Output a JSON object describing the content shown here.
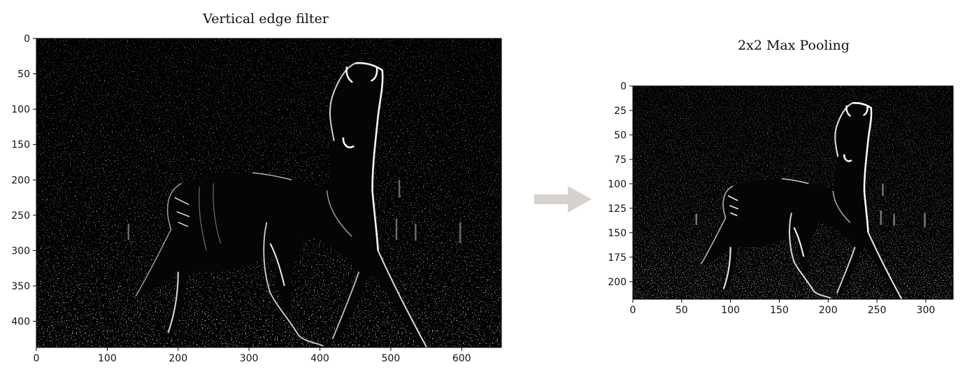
{
  "charts": {
    "left": {
      "title": "Vertical edge filter",
      "xticks": [
        0,
        100,
        200,
        300,
        400,
        500,
        600
      ],
      "yticks": [
        0,
        50,
        100,
        150,
        200,
        250,
        300,
        350,
        400
      ],
      "xlim": [
        0,
        656
      ],
      "ylim": [
        0,
        437
      ]
    },
    "right": {
      "title": "2x2 Max Pooling",
      "xticks": [
        0,
        50,
        100,
        150,
        200,
        250,
        300
      ],
      "yticks": [
        0,
        25,
        50,
        75,
        100,
        125,
        150,
        175,
        200
      ],
      "xlim": [
        0,
        328
      ],
      "ylim": [
        0,
        218
      ]
    }
  },
  "chart_data": [
    {
      "type": "heatmap",
      "title": "Vertical edge filter",
      "xlim": [
        0,
        656
      ],
      "ylim": [
        0,
        437
      ],
      "y_inverted": true,
      "xticks": [
        0,
        100,
        200,
        300,
        400,
        500,
        600
      ],
      "yticks": [
        0,
        50,
        100,
        150,
        200,
        250,
        300,
        350,
        400
      ],
      "colormap": "grayscale",
      "grid": false
    },
    {
      "type": "heatmap",
      "title": "2x2 Max Pooling",
      "xlim": [
        0,
        328
      ],
      "ylim": [
        0,
        218
      ],
      "y_inverted": true,
      "xticks": [
        0,
        50,
        100,
        150,
        200,
        250,
        300
      ],
      "yticks": [
        0,
        25,
        50,
        75,
        100,
        125,
        150,
        175,
        200
      ],
      "colormap": "grayscale",
      "grid": false
    }
  ],
  "colors": {
    "background": "#000000",
    "edge": "#ffffff",
    "arrow": "#d6d2cd"
  }
}
